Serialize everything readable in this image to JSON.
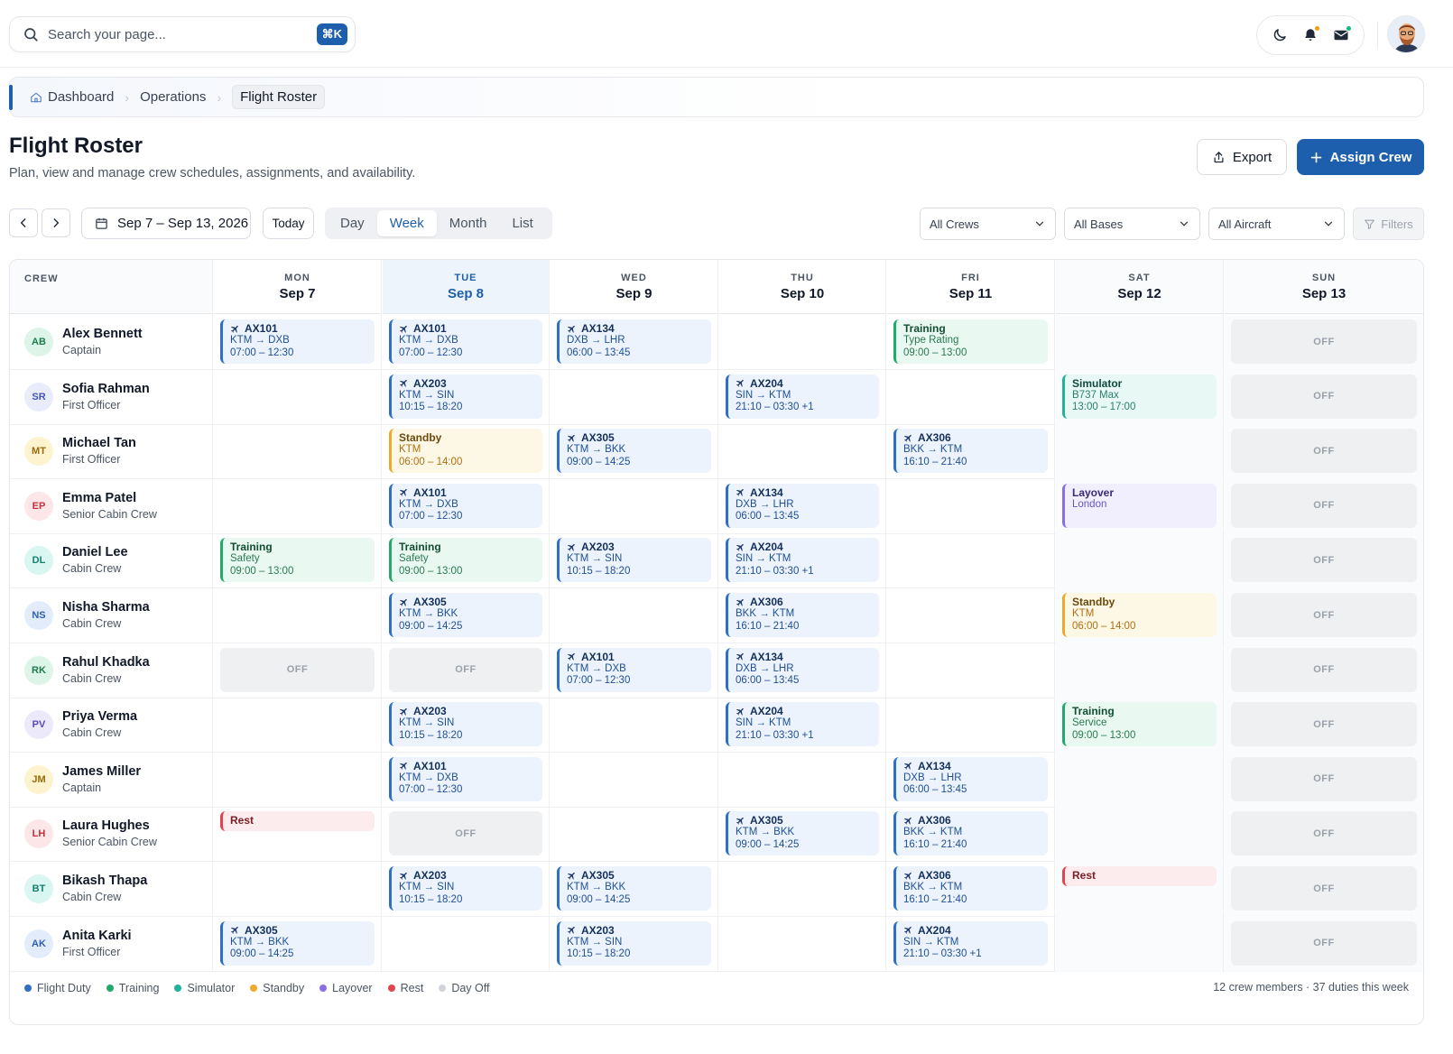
{
  "search": {
    "placeholder": "Search your page...",
    "shortcut": "⌘K"
  },
  "header_icons": [
    "moon-icon",
    "bell-icon",
    "mail-icon"
  ],
  "breadcrumb": [
    "Dashboard",
    "Operations",
    "Flight Roster"
  ],
  "page": {
    "title": "Flight Roster",
    "subtitle": "Plan, view and manage crew schedules, assignments, and availability.",
    "export_label": "Export",
    "assign_label": "Assign Crew"
  },
  "toolbar": {
    "date_range": "Sep 7 – Sep 13, 2026",
    "today_label": "Today",
    "views": [
      "Day",
      "Week",
      "Month",
      "List"
    ],
    "active_view": "Week",
    "filters": [
      "All Crews",
      "All Bases",
      "All Aircraft"
    ],
    "filters_label": "Filters"
  },
  "roster": {
    "crew_header": "CREW",
    "days": [
      {
        "name": "MON",
        "date": "Sep 7"
      },
      {
        "name": "TUE",
        "date": "Sep 8"
      },
      {
        "name": "WED",
        "date": "Sep 9"
      },
      {
        "name": "THU",
        "date": "Sep 10"
      },
      {
        "name": "FRI",
        "date": "Sep 11"
      },
      {
        "name": "SAT",
        "date": "Sep 12"
      },
      {
        "name": "SUN",
        "date": "Sep 13"
      }
    ],
    "today_index": 1,
    "crew": [
      {
        "initials": "AB",
        "name": "Alex Bennett",
        "role": "Captain",
        "avatar_bg": "#dcf5e8",
        "avatar_fg": "#1f7a4d",
        "duties": [
          {
            "type": "flight",
            "l1": "AX101",
            "l2": "KTM → DXB",
            "l3": "07:00 – 12:30"
          },
          {
            "type": "flight",
            "l1": "AX101",
            "l2": "KTM → DXB",
            "l3": "07:00 – 12:30"
          },
          {
            "type": "flight",
            "l1": "AX134",
            "l2": "DXB → LHR",
            "l3": "06:00 – 13:45"
          },
          null,
          {
            "type": "training",
            "l1": "Training",
            "l2": "Type Rating",
            "l3": "09:00 – 13:00"
          },
          null,
          {
            "type": "off",
            "l1": "OFF"
          }
        ]
      },
      {
        "initials": "SR",
        "name": "Sofia Rahman",
        "role": "First Officer",
        "avatar_bg": "#e8ecfb",
        "avatar_fg": "#4656b8",
        "duties": [
          null,
          {
            "type": "flight",
            "l1": "AX203",
            "l2": "KTM → SIN",
            "l3": "10:15 – 18:20"
          },
          null,
          {
            "type": "flight",
            "l1": "AX204",
            "l2": "SIN → KTM",
            "l3": "21:10 – 03:30 +1"
          },
          null,
          {
            "type": "simulator",
            "l1": "Simulator",
            "l2": "B737 Max",
            "l3": "13:00 – 17:00"
          },
          {
            "type": "off",
            "l1": "OFF"
          }
        ]
      },
      {
        "initials": "MT",
        "name": "Michael Tan",
        "role": "First Officer",
        "avatar_bg": "#fdf3cf",
        "avatar_fg": "#9a6a0c",
        "duties": [
          null,
          {
            "type": "standby",
            "l1": "Standby",
            "l2": "KTM",
            "l3": "06:00 – 14:00"
          },
          {
            "type": "flight",
            "l1": "AX305",
            "l2": "KTM → BKK",
            "l3": "09:00 – 14:25"
          },
          null,
          {
            "type": "flight",
            "l1": "AX306",
            "l2": "BKK → KTM",
            "l3": "16:10 – 21:40"
          },
          null,
          {
            "type": "off",
            "l1": "OFF"
          }
        ]
      },
      {
        "initials": "EP",
        "name": "Emma Patel",
        "role": "Senior Cabin Crew",
        "avatar_bg": "#fde6e8",
        "avatar_fg": "#c2313d",
        "duties": [
          null,
          {
            "type": "flight",
            "l1": "AX101",
            "l2": "KTM → DXB",
            "l3": "07:00 – 12:30"
          },
          null,
          {
            "type": "flight",
            "l1": "AX134",
            "l2": "DXB → LHR",
            "l3": "06:00 – 13:45"
          },
          null,
          {
            "type": "layover",
            "l1": "Layover",
            "l2": "London"
          },
          {
            "type": "off",
            "l1": "OFF"
          }
        ]
      },
      {
        "initials": "DL",
        "name": "Daniel Lee",
        "role": "Cabin Crew",
        "avatar_bg": "#d9f6f1",
        "avatar_fg": "#16806f",
        "duties": [
          {
            "type": "training",
            "l1": "Training",
            "l2": "Safety",
            "l3": "09:00 – 13:00"
          },
          {
            "type": "training",
            "l1": "Training",
            "l2": "Safety",
            "l3": "09:00 – 13:00"
          },
          {
            "type": "flight",
            "l1": "AX203",
            "l2": "KTM → SIN",
            "l3": "10:15 – 18:20"
          },
          {
            "type": "flight",
            "l1": "AX204",
            "l2": "SIN → KTM",
            "l3": "21:10 – 03:30 +1"
          },
          null,
          null,
          {
            "type": "off",
            "l1": "OFF"
          }
        ]
      },
      {
        "initials": "NS",
        "name": "Nisha Sharma",
        "role": "Cabin Crew",
        "avatar_bg": "#e3ecfb",
        "avatar_fg": "#2f5fb0",
        "duties": [
          null,
          {
            "type": "flight",
            "l1": "AX305",
            "l2": "KTM → BKK",
            "l3": "09:00 – 14:25"
          },
          null,
          {
            "type": "flight",
            "l1": "AX306",
            "l2": "BKK → KTM",
            "l3": "16:10 – 21:40"
          },
          null,
          {
            "type": "standby",
            "l1": "Standby",
            "l2": "KTM",
            "l3": "06:00 – 14:00"
          },
          {
            "type": "off",
            "l1": "OFF"
          }
        ]
      },
      {
        "initials": "RK",
        "name": "Rahul Khadka",
        "role": "Cabin Crew",
        "avatar_bg": "#dcf5e8",
        "avatar_fg": "#1f7a4d",
        "duties": [
          {
            "type": "off",
            "l1": "OFF"
          },
          {
            "type": "off",
            "l1": "OFF"
          },
          {
            "type": "flight",
            "l1": "AX101",
            "l2": "KTM → DXB",
            "l3": "07:00 – 12:30"
          },
          {
            "type": "flight",
            "l1": "AX134",
            "l2": "DXB → LHR",
            "l3": "06:00 – 13:45"
          },
          null,
          null,
          {
            "type": "off",
            "l1": "OFF"
          }
        ]
      },
      {
        "initials": "PV",
        "name": "Priya Verma",
        "role": "Cabin Crew",
        "avatar_bg": "#ece9fb",
        "avatar_fg": "#5b47b8",
        "duties": [
          null,
          {
            "type": "flight",
            "l1": "AX203",
            "l2": "KTM → SIN",
            "l3": "10:15 – 18:20"
          },
          null,
          {
            "type": "flight",
            "l1": "AX204",
            "l2": "SIN → KTM",
            "l3": "21:10 – 03:30 +1"
          },
          null,
          {
            "type": "training",
            "l1": "Training",
            "l2": "Service",
            "l3": "09:00 – 13:00"
          },
          {
            "type": "off",
            "l1": "OFF"
          }
        ]
      },
      {
        "initials": "JM",
        "name": "James Miller",
        "role": "Captain",
        "avatar_bg": "#fdf3cf",
        "avatar_fg": "#9a6a0c",
        "duties": [
          null,
          {
            "type": "flight",
            "l1": "AX101",
            "l2": "KTM → DXB",
            "l3": "07:00 – 12:30"
          },
          null,
          null,
          {
            "type": "flight",
            "l1": "AX134",
            "l2": "DXB → LHR",
            "l3": "06:00 – 13:45"
          },
          null,
          {
            "type": "off",
            "l1": "OFF"
          }
        ]
      },
      {
        "initials": "LH",
        "name": "Laura Hughes",
        "role": "Senior Cabin Crew",
        "avatar_bg": "#fde6e8",
        "avatar_fg": "#c2313d",
        "duties": [
          {
            "type": "rest",
            "l1": "Rest"
          },
          {
            "type": "off",
            "l1": "OFF"
          },
          null,
          {
            "type": "flight",
            "l1": "AX305",
            "l2": "KTM → BKK",
            "l3": "09:00 – 14:25"
          },
          {
            "type": "flight",
            "l1": "AX306",
            "l2": "BKK → KTM",
            "l3": "16:10 – 21:40"
          },
          null,
          {
            "type": "off",
            "l1": "OFF"
          }
        ]
      },
      {
        "initials": "BT",
        "name": "Bikash Thapa",
        "role": "Cabin Crew",
        "avatar_bg": "#d9f6f1",
        "avatar_fg": "#16806f",
        "duties": [
          null,
          {
            "type": "flight",
            "l1": "AX203",
            "l2": "KTM → SIN",
            "l3": "10:15 – 18:20"
          },
          {
            "type": "flight",
            "l1": "AX305",
            "l2": "KTM → BKK",
            "l3": "09:00 – 14:25"
          },
          null,
          {
            "type": "flight",
            "l1": "AX306",
            "l2": "BKK → KTM",
            "l3": "16:10 – 21:40"
          },
          {
            "type": "rest",
            "l1": "Rest"
          },
          {
            "type": "off",
            "l1": "OFF"
          }
        ]
      },
      {
        "initials": "AK",
        "name": "Anita Karki",
        "role": "First Officer",
        "avatar_bg": "#e3ecfb",
        "avatar_fg": "#2f5fb0",
        "duties": [
          {
            "type": "flight",
            "l1": "AX305",
            "l2": "KTM → BKK",
            "l3": "09:00 – 14:25"
          },
          null,
          {
            "type": "flight",
            "l1": "AX203",
            "l2": "KTM → SIN",
            "l3": "10:15 – 18:20"
          },
          null,
          {
            "type": "flight",
            "l1": "AX204",
            "l2": "SIN → KTM",
            "l3": "21:10 – 03:30 +1"
          },
          null,
          {
            "type": "off",
            "l1": "OFF"
          }
        ]
      }
    ]
  },
  "legend": [
    {
      "label": "Flight Duty",
      "color": "#2f6fc4"
    },
    {
      "label": "Training",
      "color": "#22a96b"
    },
    {
      "label": "Simulator",
      "color": "#1fb39a"
    },
    {
      "label": "Standby",
      "color": "#f0a92a"
    },
    {
      "label": "Layover",
      "color": "#8b6ee6"
    },
    {
      "label": "Rest",
      "color": "#e0444f"
    },
    {
      "label": "Day Off",
      "color": "#d1d5db"
    }
  ],
  "summary": "12 crew members · 37 duties this week",
  "colors": {
    "accent": "#1e5fad"
  }
}
